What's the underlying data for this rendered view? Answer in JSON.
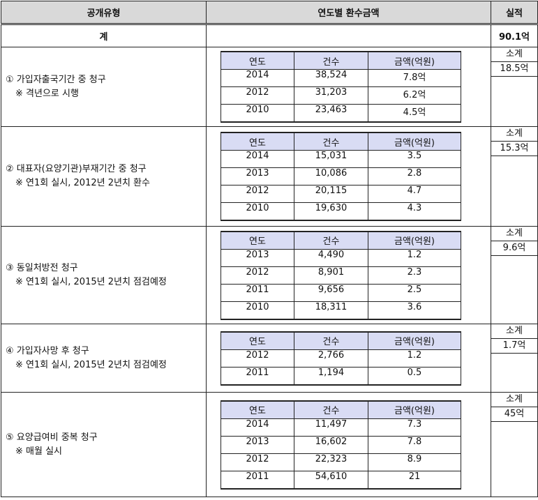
{
  "header": {
    "type": "공개유형",
    "yearly": "연도별 환수금액",
    "result": "실적"
  },
  "total": {
    "label": "계",
    "value": "90.1억"
  },
  "col_headers": {
    "year": "연도",
    "count": "건수",
    "amount": "금액(억원)"
  },
  "subtotal_label": "소계",
  "sections": [
    {
      "title": "① 가입자출국기간 중 청구",
      "note": "※ 격년으로 시행",
      "subtotal": "18.5억",
      "rows": [
        [
          "2014",
          "38,524",
          "7.8억"
        ],
        [
          "2012",
          "31,203",
          "6.2억"
        ],
        [
          "2010",
          "23,463",
          "4.5억"
        ]
      ]
    },
    {
      "title": "② 대표자(요양기관)부재기간 중 청구",
      "note": "※ 연1회 실시, 2012년 2년치 환수",
      "subtotal": "15.3억",
      "rows": [
        [
          "2014",
          "15,031",
          "3.5"
        ],
        [
          "2013",
          "10,086",
          "2.8"
        ],
        [
          "2012",
          "20,115",
          "4.7"
        ],
        [
          "2010",
          "19,630",
          "4.3"
        ]
      ]
    },
    {
      "title": "③ 동일처방전 청구",
      "note": "※ 연1회 실시, 2015년 2년치 점검예정",
      "subtotal": "9.6억",
      "rows": [
        [
          "2013",
          "4,490",
          "1.2"
        ],
        [
          "2012",
          "8,901",
          "2.3"
        ],
        [
          "2011",
          "9,656",
          "2.5"
        ],
        [
          "2010",
          "18,311",
          "3.6"
        ]
      ]
    },
    {
      "title": "④ 가입자사망 후 청구",
      "note": "※ 연1회 실시, 2015년 2년치 점검예정",
      "subtotal": "1.7억",
      "rows": [
        [
          "2012",
          "2,766",
          "1.2"
        ],
        [
          "2011",
          "1,194",
          "0.5"
        ]
      ]
    },
    {
      "title": "⑤ 요양급여비 중복 청구",
      "note": "※ 매월 실시",
      "subtotal": "45억",
      "rows": [
        [
          "2014",
          "11,497",
          "7.3"
        ],
        [
          "2013",
          "16,602",
          "7.8"
        ],
        [
          "2012",
          "22,323",
          "8.9"
        ],
        [
          "2011",
          "54,610",
          "21"
        ]
      ]
    }
  ]
}
